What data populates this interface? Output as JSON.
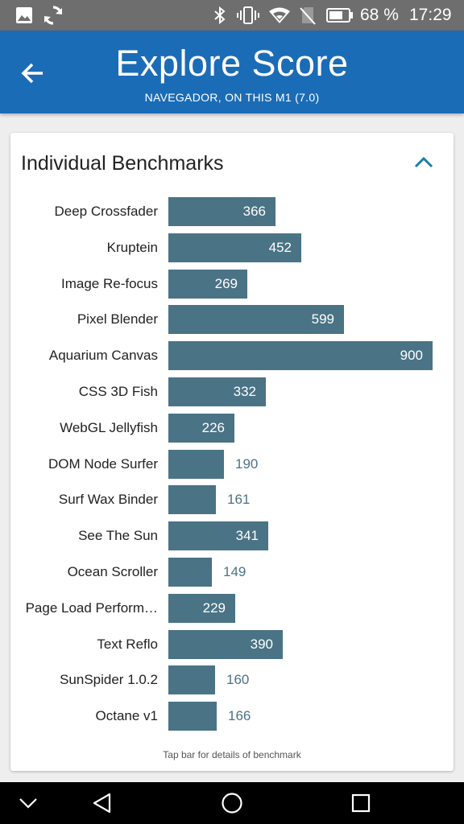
{
  "status_bar": {
    "battery_percent": "68 %",
    "time": "17:29",
    "icons": [
      "image-icon",
      "sync-icon",
      "bluetooth-icon",
      "vibrate-icon",
      "wifi-icon",
      "no-sim-icon",
      "battery-icon"
    ]
  },
  "app_bar": {
    "title": "Explore Score",
    "subtitle": "NAVEGADOR, ON THIS M1 (7.0)",
    "color": "#1b6cb6"
  },
  "card": {
    "title": "Individual Benchmarks",
    "footnote": "Tap bar for details of benchmark",
    "bar_color": "#4a7385",
    "accent_color": "#1d7ea6"
  },
  "chart_data": {
    "type": "bar",
    "orientation": "horizontal",
    "categories": [
      "Deep Crossfader",
      "Kruptein",
      "Image Re-focus",
      "Pixel Blender",
      "Aquarium Canvas",
      "CSS 3D Fish",
      "WebGL Jellyfish",
      "DOM Node Surfer",
      "Surf Wax Binder",
      "See The Sun",
      "Ocean Scroller",
      "Page Load Perform…",
      "Text Reflo",
      "SunSpider 1.0.2",
      "Octane v1"
    ],
    "values": [
      366,
      452,
      269,
      599,
      900,
      332,
      226,
      190,
      161,
      341,
      149,
      229,
      390,
      160,
      166
    ],
    "xlim": [
      0,
      900
    ]
  },
  "nav_bar": {
    "icons": [
      "chevron-down-icon",
      "back-triangle-icon",
      "home-circle-icon",
      "recents-square-icon"
    ]
  }
}
